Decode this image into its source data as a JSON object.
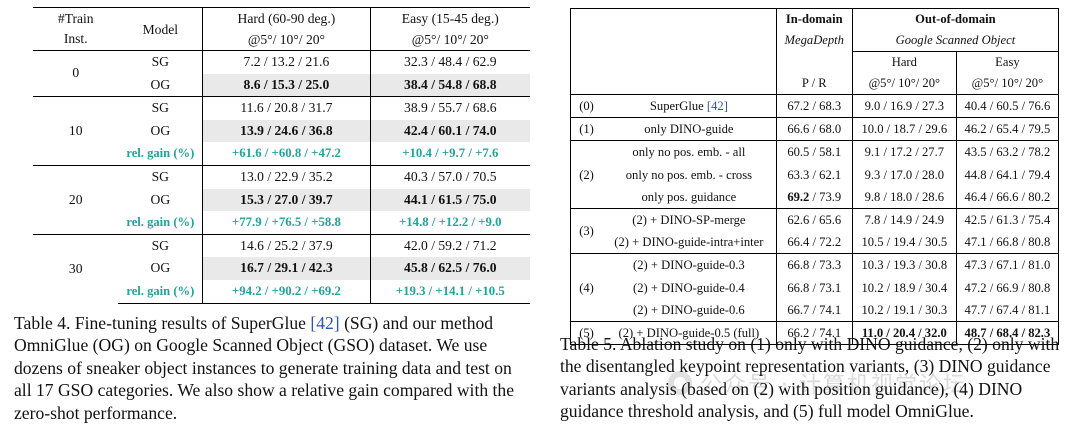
{
  "table4": {
    "header": {
      "train_inst": [
        "#Train",
        "Inst."
      ],
      "model": "Model",
      "hard": [
        "Hard (60-90 deg.)",
        "@5°/ 10°/ 20°"
      ],
      "easy": [
        "Easy (15-45 deg.)",
        "@5°/ 10°/ 20°"
      ]
    },
    "groups": [
      {
        "inst": "0",
        "rows": [
          {
            "model": "SG",
            "hard": "7.2 / 13.2 / 21.6",
            "easy": "32.3 / 48.4 / 62.9"
          },
          {
            "model": "OG",
            "hard": "8.6 / 15.3 / 25.0",
            "easy": "38.4 / 54.8 / 68.8"
          }
        ]
      },
      {
        "inst": "10",
        "rows": [
          {
            "model": "SG",
            "hard": "11.6 / 20.8 / 31.7",
            "easy": "38.9 / 55.7 / 68.6"
          },
          {
            "model": "OG",
            "hard": "13.9 / 24.6 / 36.8",
            "easy": "42.4 / 60.1 / 74.0"
          }
        ],
        "gain": {
          "label": "rel. gain (%)",
          "hard": "+61.6 / +60.8 / +47.2",
          "easy": "+10.4 / +9.7 / +7.6"
        }
      },
      {
        "inst": "20",
        "rows": [
          {
            "model": "SG",
            "hard": "13.0 / 22.9 / 35.2",
            "easy": "40.3 / 57.0 / 70.5"
          },
          {
            "model": "OG",
            "hard": "15.3 / 27.0 / 39.7",
            "easy": "44.1 / 61.5 / 75.0"
          }
        ],
        "gain": {
          "label": "rel. gain (%)",
          "hard": "+77.9 / +76.5 / +58.8",
          "easy": "+14.8 / +12.2 / +9.0"
        }
      },
      {
        "inst": "30",
        "rows": [
          {
            "model": "SG",
            "hard": "14.6 / 25.2 / 37.9",
            "easy": "42.0 / 59.2 / 71.2"
          },
          {
            "model": "OG",
            "hard": "16.7 / 29.1 / 42.3",
            "easy": "45.8 / 62.5 / 76.0"
          }
        ],
        "gain": {
          "label": "rel. gain (%)",
          "hard": "+94.2 / +90.2 / +69.2",
          "easy": "+19.3 / +14.1 / +10.5"
        }
      }
    ],
    "caption": {
      "pre": "Table 4. Fine-tuning results of SuperGlue ",
      "cite": "[42]",
      "post": " (SG) and our method OmniGlue (OG) on Google Scanned Object (GSO) dataset. We use dozens of sneaker object instances to generate training data and test on all 17 GSO categories. We also show a relative gain compared with the zero-shot performance."
    }
  },
  "table5": {
    "header": {
      "in_domain": "In-domain",
      "in_dataset": "MegaDepth",
      "in_metric": "P / R",
      "out_domain": "Out-of-domain",
      "out_dataset": "Google Scanned Object",
      "hard": "Hard",
      "easy": "Easy",
      "hard_metric": "@5°/ 10°/ 20°",
      "easy_metric": "@5°/ 10°/ 20°"
    },
    "groups": [
      {
        "idx": "(0)",
        "rows": [
          {
            "name": "SuperGlue ",
            "cite": "[42]",
            "in": "67.2 / 68.3",
            "hard": "9.0 / 16.9 / 27.3",
            "easy": "40.4 / 60.5 / 76.6"
          }
        ]
      },
      {
        "idx": "(1)",
        "rows": [
          {
            "name": "only DINO-guide",
            "in": "66.6 / 68.0",
            "hard": "10.0 / 18.7 / 29.6",
            "easy": "46.2 / 65.4 / 79.5"
          }
        ]
      },
      {
        "idx": "(2)",
        "rows": [
          {
            "name": "only no pos. emb. - all",
            "in": "60.5 / 58.1",
            "hard": "9.1 / 17.2 / 27.7",
            "easy": "43.5 / 63.2 / 78.2"
          },
          {
            "name": "only no pos. emb. - cross",
            "in": "63.3 / 62.1",
            "hard": "9.3 / 17.0 / 28.0",
            "easy": "44.8 / 64.1 / 79.4"
          },
          {
            "name": "only pos. guidance",
            "in_bold": "69.2",
            "in_rest": " / 73.9",
            "hard": "9.8 / 18.0 / 28.6",
            "easy": "46.4 / 66.6 / 80.2"
          }
        ]
      },
      {
        "idx": "(3)",
        "rows": [
          {
            "name": "(2) + DINO-SP-merge",
            "in": "62.6 / 65.6",
            "hard": "7.8 / 14.9 / 24.9",
            "easy": "42.5 / 61.3 / 75.4"
          },
          {
            "name": "(2) + DINO-guide-intra+inter",
            "in": "66.4 / 72.2",
            "hard": "10.5 / 19.4 / 30.5",
            "easy": "47.1 / 66.8 / 80.8"
          }
        ]
      },
      {
        "idx": "(4)",
        "rows": [
          {
            "name": "(2) + DINO-guide-0.3",
            "in": "66.8 / 73.3",
            "hard": "10.3 / 19.3 / 30.8",
            "easy": "47.3 / 67.1 / 81.0"
          },
          {
            "name": "(2) + DINO-guide-0.4",
            "in": "66.8 / 73.1",
            "hard": "10.2 / 18.9 / 30.4",
            "easy": "47.2 / 66.9 / 80.8"
          },
          {
            "name": "(2) + DINO-guide-0.6",
            "in": "66.7 / 74.1",
            "hard": "10.2 / 19.1 / 30.3",
            "easy": "47.7 / 67.4 / 81.1"
          }
        ]
      },
      {
        "idx": "(5)",
        "rows": [
          {
            "name": "(2) + DINO-guide-0.5 (full)",
            "in": "66.2 / 74.1",
            "hard": "11.0 / 20.4 / 32.0",
            "easy": "48.7 / 68.4 / 82.3",
            "bold_out": true
          }
        ]
      }
    ],
    "caption": "Table 5. Ablation study on (1) only with DINO guidance, (2) only with the disentangled keypoint representation variants, (3) DINO guidance variants analysis (based on (2) with position guidance), (4) DINO guidance threshold analysis, and (5) full model OmniGlue."
  },
  "watermark": "公众号 · 计算机视觉论坛"
}
